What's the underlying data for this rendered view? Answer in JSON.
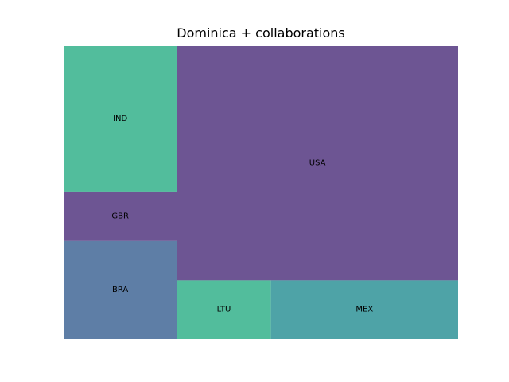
{
  "chart_data": {
    "type": "treemap",
    "title": "Dominica + collaborations",
    "legend": false,
    "grid": false,
    "tiles": [
      {
        "name": "IND",
        "value": 26,
        "color": "#52bd9c"
      },
      {
        "name": "GBR",
        "value": 8.8,
        "color": "#6d5593"
      },
      {
        "name": "BRA",
        "value": 17.5,
        "color": "#5e7ea6"
      },
      {
        "name": "USA",
        "value": 104,
        "color": "#6d5593"
      },
      {
        "name": "LTU",
        "value": 8.7,
        "color": "#52bd9c"
      },
      {
        "name": "MEX",
        "value": 17.3,
        "color": "#4ea3a7"
      }
    ]
  }
}
